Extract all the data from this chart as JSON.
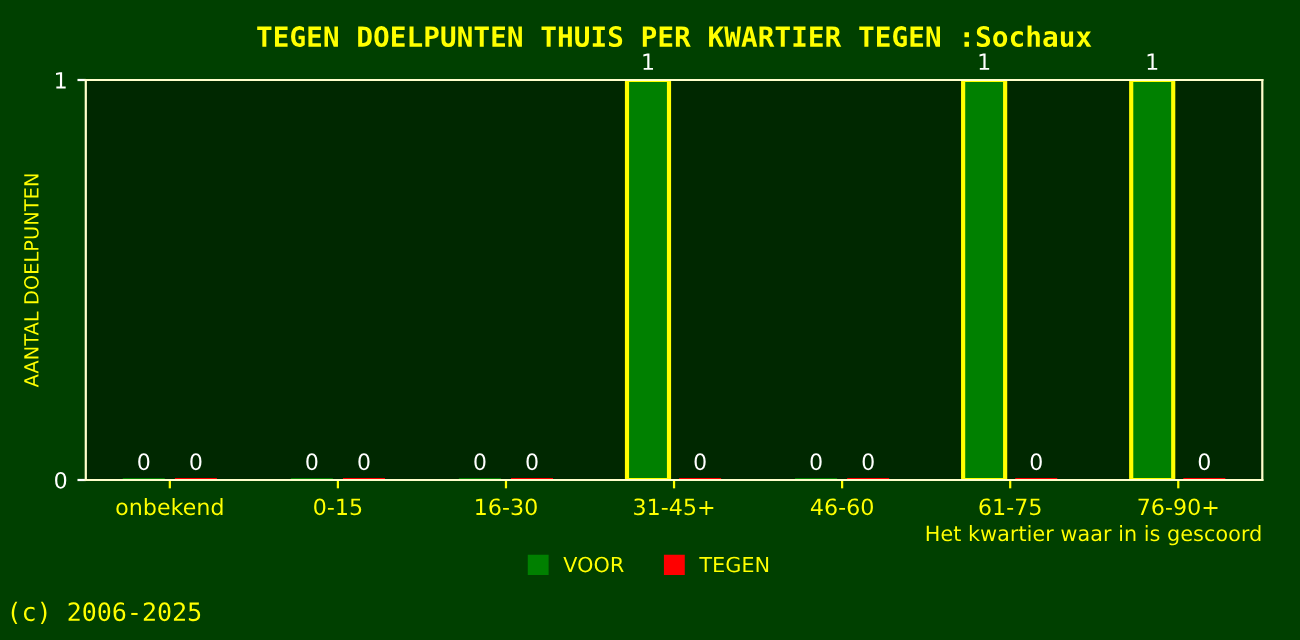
{
  "chart_data": {
    "type": "bar",
    "title": "TEGEN DOELPUNTEN THUIS PER KWARTIER TEGEN :Sochaux",
    "categories": [
      "onbekend",
      "0-15",
      "16-30",
      "31-45+",
      "46-60",
      "61-75",
      "76-90+"
    ],
    "series": [
      {
        "name": "VOOR",
        "color": "#008000",
        "values": [
          0,
          0,
          0,
          1,
          0,
          1,
          1
        ]
      },
      {
        "name": "TEGEN",
        "color": "#ff0000",
        "values": [
          0,
          0,
          0,
          0,
          0,
          0,
          0
        ]
      }
    ],
    "ylim": [
      0,
      1
    ],
    "yticks": [
      0,
      1
    ],
    "ylabel": "AANTAL DOELPUNTEN",
    "xlabel": "Het kwartier waar in is gescoord",
    "data_labels": true,
    "grid": false,
    "legend": "bottom",
    "annotations": [
      "(c) 2006-2025"
    ]
  }
}
